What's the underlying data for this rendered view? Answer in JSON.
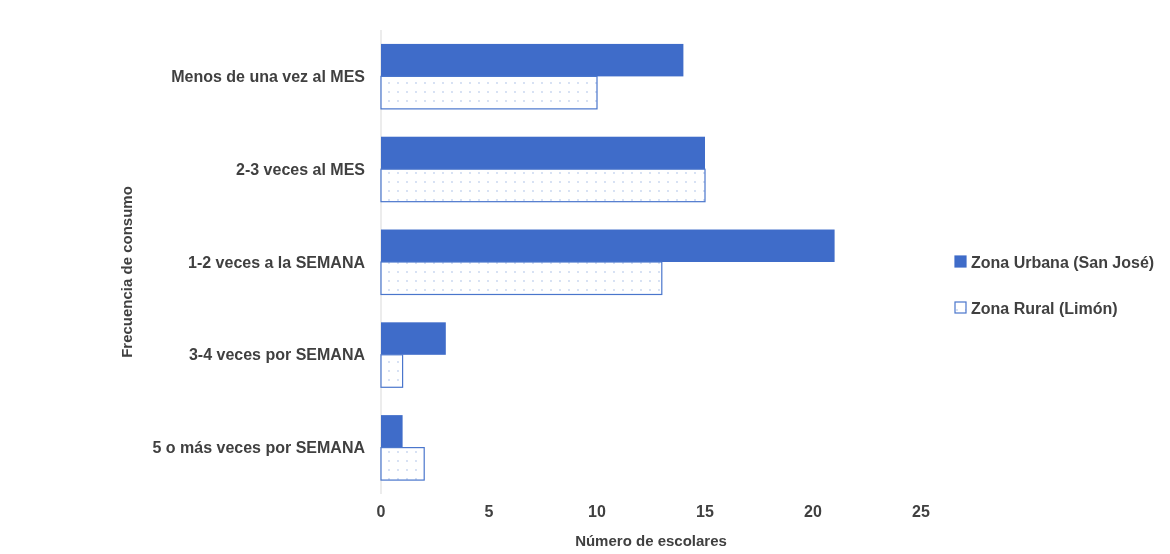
{
  "chart_data": {
    "type": "bar",
    "orientation": "horizontal",
    "xlabel": "Número de escolares",
    "ylabel": "Frecuencia de consumo",
    "categories": [
      "Menos de una vez al MES",
      "2-3 veces al MES",
      "1-2 veces a la SEMANA",
      "3-4 veces por SEMANA",
      "5 o más  veces por SEMANA"
    ],
    "series": [
      {
        "name": "Zona Urbana (San José)",
        "color": "#3f6cc9",
        "values": [
          14,
          15,
          21,
          3,
          1
        ]
      },
      {
        "name": "Zona Rural (Limón)",
        "color": "#4a76cc",
        "values": [
          10,
          15,
          13,
          1,
          2
        ]
      }
    ],
    "xlim": [
      0,
      25
    ],
    "xticks": [
      0,
      5,
      10,
      15,
      20,
      25
    ],
    "grid": false,
    "legend": "right"
  }
}
